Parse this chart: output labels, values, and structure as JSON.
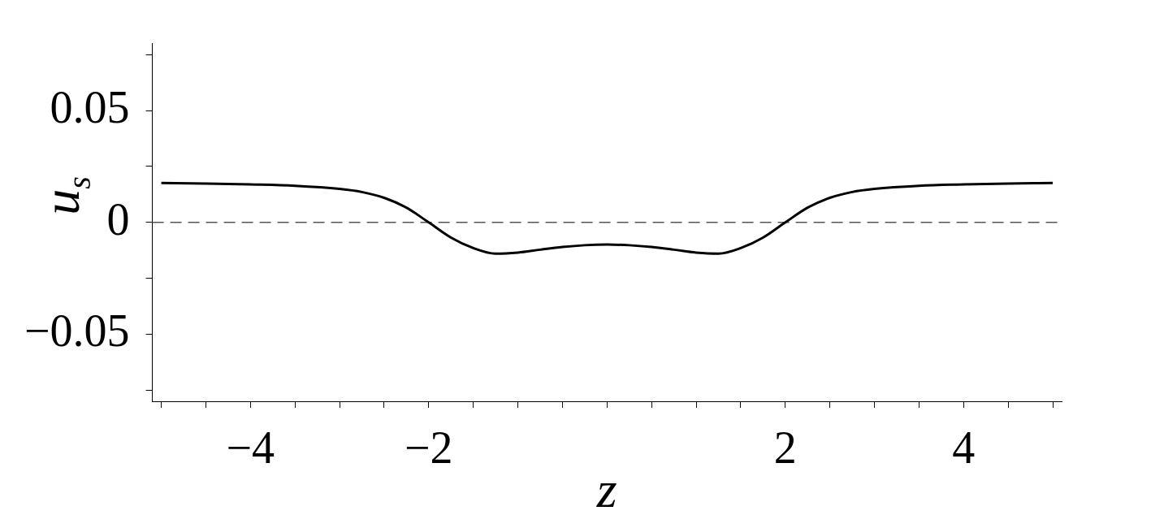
{
  "chart_data": {
    "type": "line",
    "xlabel": "z",
    "ylabel": "u$_{s}$",
    "x": [
      -5,
      -4.5,
      -4,
      -3.5,
      -3,
      -2.75,
      -2.5,
      -2.25,
      -2,
      -1.75,
      -1.5,
      -1.25,
      -1,
      -0.75,
      -0.5,
      -0.25,
      0,
      0.25,
      0.5,
      0.75,
      1,
      1.25,
      1.5,
      1.75,
      2,
      2.25,
      2.5,
      2.75,
      3,
      3.5,
      4,
      4.5,
      5
    ],
    "series": [
      {
        "color": "#000000",
        "values": [
          0.0176,
          0.0174,
          0.017,
          0.0164,
          0.015,
          0.0136,
          0.011,
          0.0066,
          0,
          -0.0068,
          -0.0115,
          -0.014,
          -0.0135,
          -0.0122,
          -0.011,
          -0.0102,
          -0.0099,
          -0.0102,
          -0.011,
          -0.0122,
          -0.0135,
          -0.014,
          -0.0115,
          -0.0068,
          0,
          0.0066,
          0.011,
          0.0136,
          0.015,
          0.0164,
          0.017,
          0.0174,
          0.0176
        ]
      }
    ],
    "xlim": [
      -5.1,
      5.1
    ],
    "xticks": [
      {
        "value": -5,
        "label": null
      },
      {
        "value": -4.5,
        "label": null
      },
      {
        "value": -4,
        "label": "−4"
      },
      {
        "value": -3.5,
        "label": null
      },
      {
        "value": -3,
        "label": null
      },
      {
        "value": -2.5,
        "label": null
      },
      {
        "value": -2,
        "label": "−2"
      },
      {
        "value": -1.5,
        "label": null
      },
      {
        "value": -1,
        "label": null
      },
      {
        "value": -0.5,
        "label": null
      },
      {
        "value": 0,
        "label": null
      },
      {
        "value": 0.5,
        "label": null
      },
      {
        "value": 1,
        "label": null
      },
      {
        "value": 1.5,
        "label": null
      },
      {
        "value": 2,
        "label": "2"
      },
      {
        "value": 2.5,
        "label": null
      },
      {
        "value": 3,
        "label": null
      },
      {
        "value": 3.5,
        "label": null
      },
      {
        "value": 4,
        "label": "4"
      },
      {
        "value": 4.5,
        "label": null
      },
      {
        "value": 5,
        "label": null
      }
    ],
    "ylim": [
      -0.08,
      0.08
    ],
    "yticks": [
      {
        "value": -0.075,
        "label": null
      },
      {
        "value": -0.05,
        "label": "−0.05"
      },
      {
        "value": -0.025,
        "label": null
      },
      0,
      {
        "value": 0.025,
        "label": null
      },
      {
        "value": 0.05,
        "label": "0.05"
      },
      {
        "value": 0.075,
        "label": null
      }
    ],
    "ref_lines": [
      {
        "axis": "y",
        "value": 0,
        "color": "#555555",
        "line_style": "dashed"
      }
    ],
    "grid": false,
    "legend": false,
    "marker": "none",
    "line_style": "solid"
  }
}
